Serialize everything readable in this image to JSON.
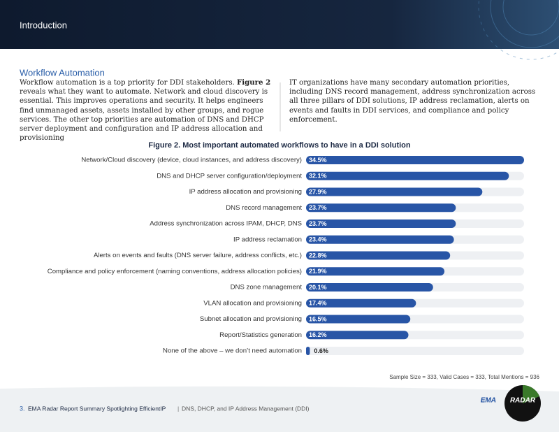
{
  "header": {
    "title": "Introduction"
  },
  "section": {
    "title": "Workflow Automation",
    "left": [
      "Workflow automation is a top priority for DDI stakeholders. ",
      "Figure 2",
      " reveals what they want to automate. Network and cloud discovery is essential. This improves operations and security. It helps engineers find unmanaged assets, assets installed by other groups, and rogue services. The other top priorities are automation of DNS and DHCP server deployment and configuration and IP address allocation and provisioning"
    ],
    "right": "IT organizations have many secondary automation priorities, including DNS record management, address synchronization across all three pillars of DDI solutions, IP address reclamation, alerts on events and faults in DDI services, and compliance and policy enforcement."
  },
  "chart_data": {
    "type": "hbar",
    "title": "Figure 2. Most important automated workflows to have in a DDI solution",
    "categories": [
      "Network/Cloud discovery (device, cloud instances, and address discovery)",
      "DNS and DHCP server configuration/deployment",
      "IP address allocation and provisioning",
      "DNS record management",
      "Address synchronization across IPAM, DHCP, DNS",
      "IP address reclamation",
      "Alerts on events and faults (DNS server failure, address conflicts, etc.)",
      "Compliance and policy enforcement (naming conventions, address allocation policies)",
      "DNS zone management",
      "VLAN allocation and provisioning",
      "Subnet allocation and provisioning",
      "Report/Statistics generation",
      "None of the above – we don’t need automation"
    ],
    "values": [
      34.5,
      32.1,
      27.9,
      23.7,
      23.7,
      23.4,
      22.8,
      21.9,
      20.1,
      17.4,
      16.5,
      16.2,
      0.6
    ],
    "value_labels": [
      "34.5%",
      "32.1%",
      "27.9%",
      "23.7%",
      "23.7%",
      "23.4%",
      "22.8%",
      "21.9%",
      "20.1%",
      "17.4%",
      "16.5%",
      "16.2%",
      "0.6%"
    ],
    "color": "#2855a6",
    "xlim": [
      0,
      34.5
    ],
    "note": "Sample Size = 333, Valid Cases = 333, Total Mentions = 936"
  },
  "footer": {
    "page": "3.",
    "report": "EMA Radar Report Summary Spotlighting EfficientIP",
    "separator": "|",
    "topic": "DNS, DHCP, and IP Address Management (DDI)"
  },
  "logo": {
    "brand": "EMA",
    "product": "RADAR"
  }
}
